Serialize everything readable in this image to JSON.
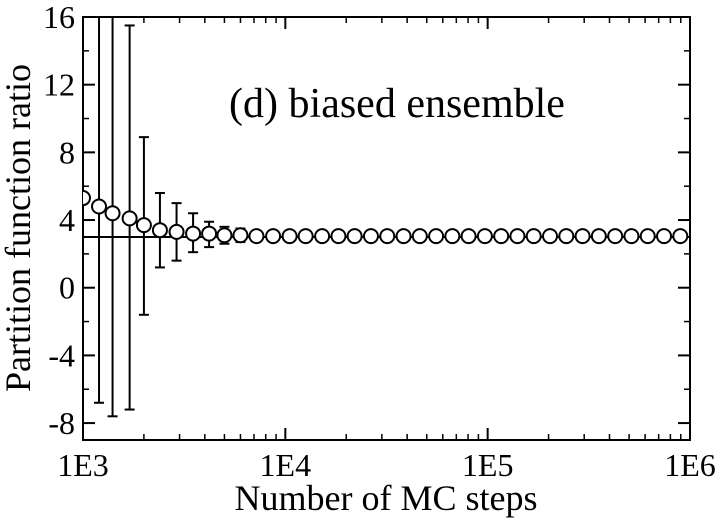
{
  "chart_data": {
    "type": "scatter",
    "title": "(d) biased ensemble",
    "xlabel": "Number of MC steps",
    "ylabel": "Partition function ratio",
    "x_scale": "log",
    "xlim": [
      1000,
      1000000
    ],
    "ylim": [
      -9,
      16
    ],
    "x_ticks": [
      {
        "value": 1000,
        "label": "1E3"
      },
      {
        "value": 10000,
        "label": "1E4"
      },
      {
        "value": 100000,
        "label": "1E5"
      },
      {
        "value": 1000000,
        "label": "1E6"
      }
    ],
    "y_ticks": [
      {
        "value": 16,
        "label": "16"
      },
      {
        "value": 12,
        "label": "12"
      },
      {
        "value": 8,
        "label": "8"
      },
      {
        "value": 4,
        "label": "4"
      },
      {
        "value": 0,
        "label": "0"
      },
      {
        "value": -4,
        "label": "-4"
      },
      {
        "value": -8,
        "label": "-8"
      }
    ],
    "reference_line": {
      "y": 3.0
    },
    "grid": false,
    "legend": "none",
    "series": [
      {
        "marker": "open-circle",
        "points": [
          {
            "x": 1000,
            "y": 5.3,
            "yerr_low": 5.3,
            "yerr_high": 5.3
          },
          {
            "x": 1200,
            "y": 4.8,
            "yerr_low": -6.8,
            "yerr_high": 16.5
          },
          {
            "x": 1400,
            "y": 4.4,
            "yerr_low": -7.6,
            "yerr_high": 16.5
          },
          {
            "x": 1700,
            "y": 4.1,
            "yerr_low": -7.2,
            "yerr_high": 15.5
          },
          {
            "x": 2000,
            "y": 3.7,
            "yerr_low": -1.6,
            "yerr_high": 8.9
          },
          {
            "x": 2400,
            "y": 3.4,
            "yerr_low": 1.2,
            "yerr_high": 5.6
          },
          {
            "x": 2900,
            "y": 3.3,
            "yerr_low": 1.6,
            "yerr_high": 5.0
          },
          {
            "x": 3500,
            "y": 3.2,
            "yerr_low": 2.1,
            "yerr_high": 4.4
          },
          {
            "x": 4200,
            "y": 3.2,
            "yerr_low": 2.4,
            "yerr_high": 3.9
          },
          {
            "x": 5000,
            "y": 3.1,
            "yerr_low": 2.6,
            "yerr_high": 3.6
          },
          {
            "x": 6000,
            "y": 3.1,
            "yerr_low": 2.7,
            "yerr_high": 3.5
          },
          {
            "x": 7200,
            "y": 3.05,
            "yerr_low": 2.75,
            "yerr_high": 3.35
          },
          {
            "x": 8700,
            "y": 3.05,
            "yerr_low": 3.05,
            "yerr_high": 3.05
          },
          {
            "x": 10500,
            "y": 3.05,
            "yerr_low": 3.05,
            "yerr_high": 3.05
          },
          {
            "x": 12600,
            "y": 3.05,
            "yerr_low": 3.05,
            "yerr_high": 3.05
          },
          {
            "x": 15200,
            "y": 3.05,
            "yerr_low": 3.05,
            "yerr_high": 3.05
          },
          {
            "x": 18300,
            "y": 3.05,
            "yerr_low": 3.05,
            "yerr_high": 3.05
          },
          {
            "x": 22000,
            "y": 3.05,
            "yerr_low": 3.05,
            "yerr_high": 3.05
          },
          {
            "x": 26500,
            "y": 3.05,
            "yerr_low": 3.05,
            "yerr_high": 3.05
          },
          {
            "x": 31900,
            "y": 3.05,
            "yerr_low": 3.05,
            "yerr_high": 3.05
          },
          {
            "x": 38400,
            "y": 3.05,
            "yerr_low": 3.05,
            "yerr_high": 3.05
          },
          {
            "x": 46200,
            "y": 3.05,
            "yerr_low": 3.05,
            "yerr_high": 3.05
          },
          {
            "x": 55600,
            "y": 3.05,
            "yerr_low": 3.05,
            "yerr_high": 3.05
          },
          {
            "x": 66900,
            "y": 3.05,
            "yerr_low": 3.05,
            "yerr_high": 3.05
          },
          {
            "x": 80500,
            "y": 3.05,
            "yerr_low": 3.05,
            "yerr_high": 3.05
          },
          {
            "x": 96900,
            "y": 3.05,
            "yerr_low": 3.05,
            "yerr_high": 3.05
          },
          {
            "x": 116600,
            "y": 3.05,
            "yerr_low": 3.05,
            "yerr_high": 3.05
          },
          {
            "x": 140300,
            "y": 3.05,
            "yerr_low": 3.05,
            "yerr_high": 3.05
          },
          {
            "x": 168900,
            "y": 3.05,
            "yerr_low": 3.05,
            "yerr_high": 3.05
          },
          {
            "x": 203300,
            "y": 3.05,
            "yerr_low": 3.05,
            "yerr_high": 3.05
          },
          {
            "x": 244700,
            "y": 3.05,
            "yerr_low": 3.05,
            "yerr_high": 3.05
          },
          {
            "x": 294500,
            "y": 3.05,
            "yerr_low": 3.05,
            "yerr_high": 3.05
          },
          {
            "x": 354500,
            "y": 3.05,
            "yerr_low": 3.05,
            "yerr_high": 3.05
          },
          {
            "x": 426700,
            "y": 3.05,
            "yerr_low": 3.05,
            "yerr_high": 3.05
          },
          {
            "x": 513600,
            "y": 3.05,
            "yerr_low": 3.05,
            "yerr_high": 3.05
          },
          {
            "x": 618200,
            "y": 3.05,
            "yerr_low": 3.05,
            "yerr_high": 3.05
          },
          {
            "x": 744100,
            "y": 3.05,
            "yerr_low": 3.05,
            "yerr_high": 3.05
          },
          {
            "x": 895600,
            "y": 3.05,
            "yerr_low": 3.05,
            "yerr_high": 3.05
          }
        ]
      }
    ]
  }
}
